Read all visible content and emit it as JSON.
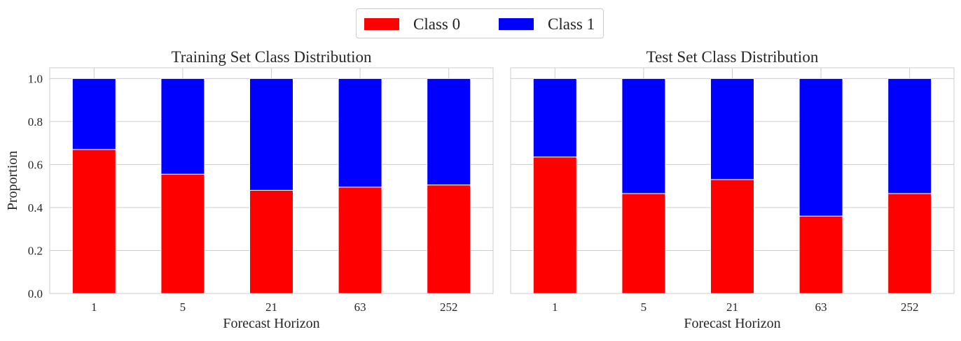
{
  "legend": {
    "items": [
      {
        "label": "Class 0",
        "color": "#ff0000"
      },
      {
        "label": "Class 1",
        "color": "#0000ff"
      }
    ]
  },
  "chart_data": [
    {
      "type": "bar",
      "stacked": true,
      "title": "Training Set Class Distribution",
      "xlabel": "Forecast Horizon",
      "ylabel": "Proportion",
      "categories": [
        "1",
        "5",
        "21",
        "63",
        "252"
      ],
      "series": [
        {
          "name": "Class 0",
          "color": "#ff0000",
          "values": [
            0.67,
            0.555,
            0.48,
            0.495,
            0.505
          ]
        },
        {
          "name": "Class 1",
          "color": "#0000ff",
          "values": [
            0.33,
            0.445,
            0.52,
            0.505,
            0.495
          ]
        }
      ],
      "ylim": [
        0,
        1.05
      ],
      "yticks": [
        "0.0",
        "0.2",
        "0.4",
        "0.6",
        "0.8",
        "1.0"
      ],
      "grid": true
    },
    {
      "type": "bar",
      "stacked": true,
      "title": "Test Set Class Distribution",
      "xlabel": "Forecast Horizon",
      "ylabel": "",
      "categories": [
        "1",
        "5",
        "21",
        "63",
        "252"
      ],
      "series": [
        {
          "name": "Class 0",
          "color": "#ff0000",
          "values": [
            0.635,
            0.465,
            0.53,
            0.36,
            0.465
          ]
        },
        {
          "name": "Class 1",
          "color": "#0000ff",
          "values": [
            0.365,
            0.535,
            0.47,
            0.64,
            0.535
          ]
        }
      ],
      "ylim": [
        0,
        1.05
      ],
      "yticks": [
        "0.0",
        "0.2",
        "0.4",
        "0.6",
        "0.8",
        "1.0"
      ],
      "grid": true
    }
  ]
}
